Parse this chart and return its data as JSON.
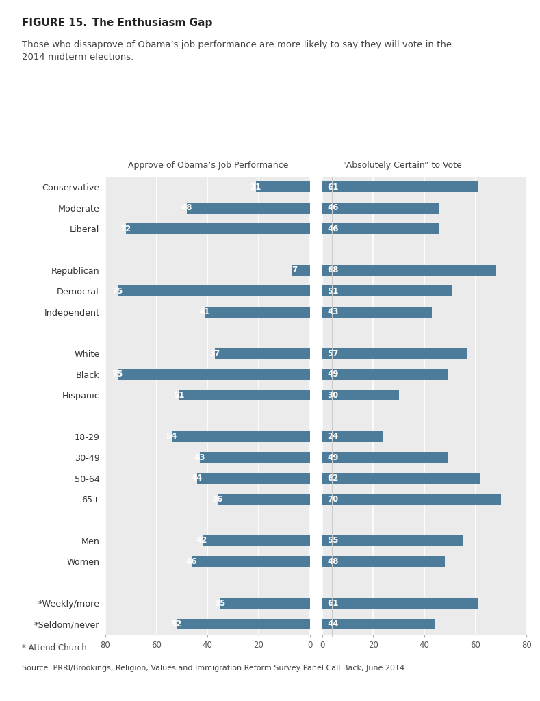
{
  "title": "FIGURE 15. The Enthusiasm Gap",
  "subtitle": "Those who dissaprove of Obama’s job performance are more likely to say they will vote in the\n2014 midterm elections.",
  "left_header": "Approve of Obama’s Job Performance",
  "right_header": "“Absolutely Certain” to Vote",
  "footnote": "* Attend Church",
  "source": "Source: PRRI/Brookings, Religion, Values and Immigration Reform Survey Panel Call Back, June 2014",
  "categories": [
    "Conservative",
    "Moderate",
    "Liberal",
    "",
    "Republican",
    "Democrat",
    "Independent",
    "",
    "White",
    "Black",
    "Hispanic",
    "",
    "18-29",
    "30-49",
    "50-64",
    "65+",
    "",
    "Men",
    "Women",
    "",
    "*Weekly/more",
    "*Seldom/never"
  ],
  "left_values": [
    21,
    48,
    72,
    null,
    7,
    75,
    41,
    null,
    37,
    75,
    51,
    null,
    54,
    43,
    44,
    36,
    null,
    42,
    46,
    null,
    35,
    52
  ],
  "right_values": [
    61,
    46,
    46,
    null,
    68,
    51,
    43,
    null,
    57,
    49,
    30,
    null,
    24,
    49,
    62,
    70,
    null,
    55,
    48,
    null,
    61,
    44
  ],
  "bar_color": "#4d7c9a",
  "bg_color": "#ebebeb",
  "xlim": 80,
  "bar_height": 0.52,
  "left_ticks": [
    0,
    20,
    40,
    60,
    80
  ],
  "right_ticks": [
    0,
    20,
    40,
    60,
    80
  ]
}
